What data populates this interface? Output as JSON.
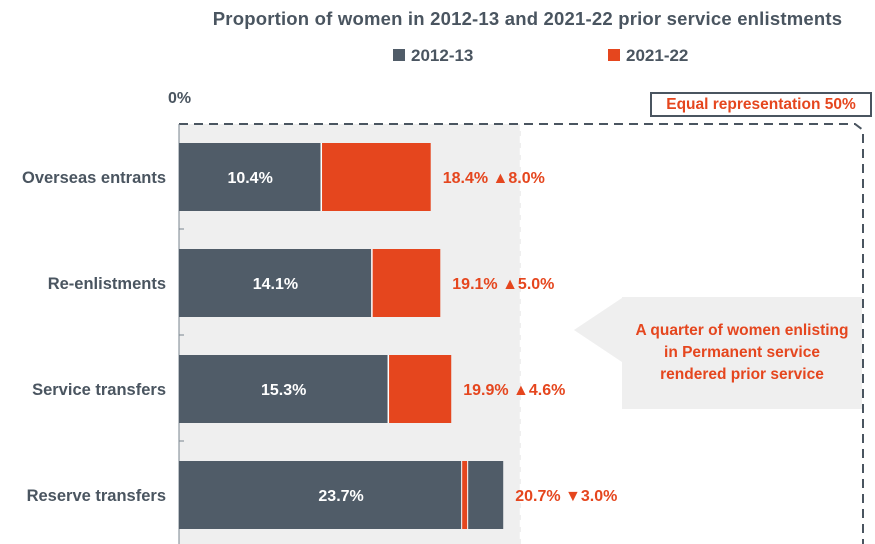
{
  "chart_data": {
    "type": "bar",
    "title": "Proportion of women in 2012-13 and 2021-22 prior service enlistments",
    "categories": [
      "Overseas entrants",
      "Re-enlistments",
      "Service transfers",
      "Reserve transfers"
    ],
    "series": [
      {
        "name": "2012-13",
        "values": [
          10.4,
          14.1,
          15.3,
          23.7
        ],
        "labels": [
          "10.4%",
          "14.1%",
          "15.3%",
          "23.7%"
        ]
      },
      {
        "name": "2021-22",
        "values": [
          18.4,
          19.1,
          19.9,
          20.7
        ],
        "labels": [
          "18.4%",
          "19.1%",
          "19.9%",
          "20.7%"
        ]
      }
    ],
    "change_labels": [
      "18.4% ▲8.0%",
      "19.1% ▲5.0%",
      "19.9% ▲4.6%",
      "20.7% ▼3.0%"
    ],
    "change_directions": [
      "up",
      "up",
      "up",
      "down"
    ],
    "xlim": [
      0,
      50
    ],
    "x_tick_label": "0%",
    "reference_line": {
      "value": 50,
      "label": "Equal representation 50%"
    },
    "shaded_region": [
      0,
      25
    ],
    "annotation": "A quarter of women enlisting in Permanent service rendered prior service",
    "legend_placement": "top",
    "colors": {
      "2012-13": "#505c68",
      "2021-22": "#e5461e",
      "text": "#4a5560",
      "shade": "#efefef"
    }
  }
}
